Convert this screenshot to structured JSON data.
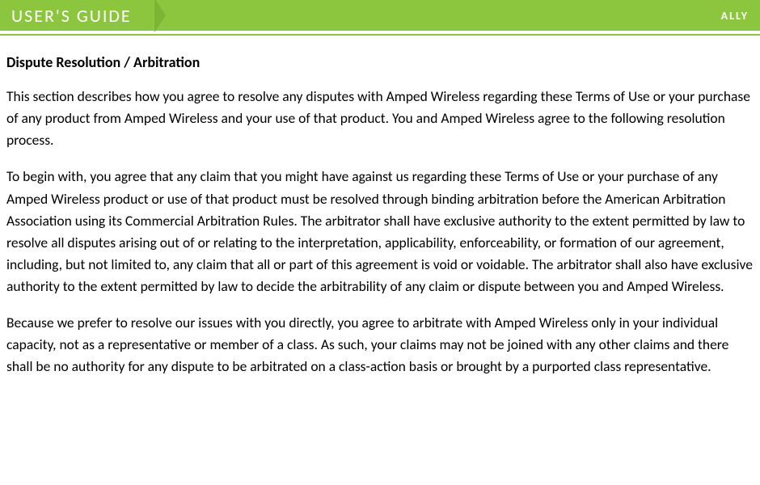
{
  "header": {
    "guide_label": "USER'S GUIDE",
    "brand": "ALLY"
  },
  "document": {
    "section_title": "Dispute Resolution / Arbitration",
    "paragraphs": [
      "This section describes how you agree to resolve any disputes with Amped Wireless regarding these Terms of Use or your purchase of any product from Amped Wireless and your use of that product. You and Amped Wireless agree to the following resolution process.",
      "To begin with, you agree that any claim that you might have against us regarding these Terms of Use or your purchase of any Amped Wireless product or use of that product must be resolved through binding arbitration before the American Arbitration Association using its Commercial Arbitration Rules. The arbitrator shall have exclusive authority to the extent permitted by law to resolve all disputes arising out of or relating to the interpretation, applicability, enforceability, or formation of our agreement, including, but not limited to, any claim that all or part of this agreement is void or voidable. The arbitrator shall also have exclusive authority to the extent permitted by law to decide the arbitrability of any claim or dispute between you and Amped Wireless.",
      "Because we prefer to resolve our issues with you directly, you agree to arbitrate with Amped Wireless only in your individual capacity, not as a representative or member of a class. As such, your claims may not be joined with any other claims and there shall be no authority for any dispute to be arbitrated on a class-action basis or brought by a purported class representative."
    ]
  },
  "colors": {
    "header_bg": "#8cc63f",
    "header_text": "#ffffff",
    "body_text": "#000000",
    "page_bg": "#ffffff"
  }
}
